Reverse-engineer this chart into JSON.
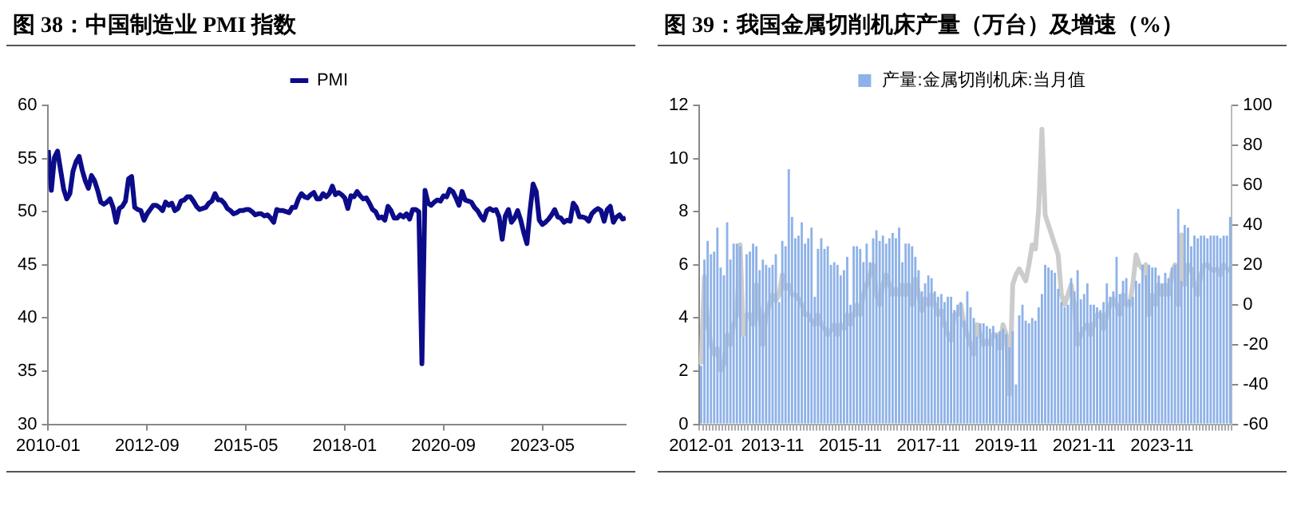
{
  "chart_data": [
    {
      "type": "line",
      "title": "图 38：中国制造业 PMI 指数",
      "legend": "top",
      "grid": false,
      "marker": "none",
      "line_style": "solid",
      "x": [
        "2010-01",
        "2010-02",
        "2010-03",
        "2010-04",
        "2010-05",
        "2010-06",
        "2010-07",
        "2010-08",
        "2010-09",
        "2010-10",
        "2010-11",
        "2010-12",
        "2011-01",
        "2011-02",
        "2011-03",
        "2011-04",
        "2011-05",
        "2011-06",
        "2011-07",
        "2011-08",
        "2011-09",
        "2011-10",
        "2011-11",
        "2011-12",
        "2012-01",
        "2012-02",
        "2012-03",
        "2012-04",
        "2012-05",
        "2012-06",
        "2012-07",
        "2012-08",
        "2012-09",
        "2012-10",
        "2012-11",
        "2012-12",
        "2013-01",
        "2013-02",
        "2013-03",
        "2013-04",
        "2013-05",
        "2013-06",
        "2013-07",
        "2013-08",
        "2013-09",
        "2013-10",
        "2013-11",
        "2013-12",
        "2014-01",
        "2014-02",
        "2014-03",
        "2014-04",
        "2014-05",
        "2014-06",
        "2014-07",
        "2014-08",
        "2014-09",
        "2014-10",
        "2014-11",
        "2014-12",
        "2015-01",
        "2015-02",
        "2015-03",
        "2015-04",
        "2015-05",
        "2015-06",
        "2015-07",
        "2015-08",
        "2015-09",
        "2015-10",
        "2015-11",
        "2015-12",
        "2016-01",
        "2016-02",
        "2016-03",
        "2016-04",
        "2016-05",
        "2016-06",
        "2016-07",
        "2016-08",
        "2016-09",
        "2016-10",
        "2016-11",
        "2016-12",
        "2017-01",
        "2017-02",
        "2017-03",
        "2017-04",
        "2017-05",
        "2017-06",
        "2017-07",
        "2017-08",
        "2017-09",
        "2017-10",
        "2017-11",
        "2017-12",
        "2018-01",
        "2018-02",
        "2018-03",
        "2018-04",
        "2018-05",
        "2018-06",
        "2018-07",
        "2018-08",
        "2018-09",
        "2018-10",
        "2018-11",
        "2018-12",
        "2019-01",
        "2019-02",
        "2019-03",
        "2019-04",
        "2019-05",
        "2019-06",
        "2019-07",
        "2019-08",
        "2019-09",
        "2019-10",
        "2019-11",
        "2019-12",
        "2020-01",
        "2020-02",
        "2020-03",
        "2020-04",
        "2020-05",
        "2020-06",
        "2020-07",
        "2020-08",
        "2020-09",
        "2020-10",
        "2020-11",
        "2020-12",
        "2021-01",
        "2021-02",
        "2021-03",
        "2021-04",
        "2021-05",
        "2021-06",
        "2021-07",
        "2021-08",
        "2021-09",
        "2021-10",
        "2021-11",
        "2021-12",
        "2022-01",
        "2022-02",
        "2022-03",
        "2022-04",
        "2022-05",
        "2022-06",
        "2022-07",
        "2022-08",
        "2022-09",
        "2022-10",
        "2022-11",
        "2022-12",
        "2023-01",
        "2023-02",
        "2023-03",
        "2023-04",
        "2023-05",
        "2023-06",
        "2023-07",
        "2023-08",
        "2023-09",
        "2023-10",
        "2023-11",
        "2023-12",
        "2024-01",
        "2024-02",
        "2024-03",
        "2024-04",
        "2024-05",
        "2024-06",
        "2024-07",
        "2024-08",
        "2024-09",
        "2024-10",
        "2024-11",
        "2024-12",
        "2025-01",
        "2025-02",
        "2025-03",
        "2025-04",
        "2025-05",
        "2025-06",
        "2025-07",
        "2025-08"
      ],
      "series": [
        {
          "name": "PMI",
          "color": "#0c0c8a",
          "values": [
            55.8,
            52.0,
            55.1,
            55.7,
            53.9,
            52.1,
            51.2,
            51.7,
            53.8,
            54.7,
            55.2,
            53.9,
            52.9,
            52.2,
            53.4,
            52.9,
            52.0,
            50.9,
            50.7,
            50.9,
            51.2,
            50.4,
            49.0,
            50.3,
            50.5,
            51.0,
            53.1,
            53.3,
            50.4,
            50.2,
            50.1,
            49.2,
            49.8,
            50.2,
            50.6,
            50.6,
            50.4,
            50.1,
            50.9,
            50.6,
            50.8,
            50.1,
            50.3,
            51.0,
            51.1,
            51.4,
            51.4,
            51.0,
            50.5,
            50.2,
            50.3,
            50.4,
            50.8,
            51.0,
            51.7,
            51.1,
            51.1,
            50.8,
            50.3,
            50.1,
            49.8,
            49.9,
            50.1,
            50.1,
            50.2,
            50.2,
            50.0,
            49.7,
            49.8,
            49.8,
            49.6,
            49.7,
            49.4,
            49.0,
            50.2,
            50.1,
            50.1,
            50.0,
            49.9,
            50.4,
            50.4,
            51.2,
            51.7,
            51.4,
            51.3,
            51.6,
            51.8,
            51.2,
            51.2,
            51.7,
            51.4,
            51.7,
            52.4,
            51.6,
            51.8,
            51.6,
            51.3,
            50.3,
            51.5,
            51.4,
            51.9,
            51.5,
            51.2,
            51.3,
            50.8,
            50.2,
            50.0,
            49.4,
            49.5,
            49.2,
            50.5,
            50.1,
            49.4,
            49.4,
            49.7,
            49.5,
            49.8,
            49.3,
            50.2,
            50.2,
            50.0,
            35.7,
            52.0,
            50.8,
            50.6,
            50.9,
            51.1,
            51.0,
            51.5,
            51.4,
            52.1,
            51.9,
            51.3,
            50.6,
            51.9,
            51.1,
            51.0,
            50.9,
            50.4,
            50.1,
            49.6,
            49.2,
            50.1,
            50.3,
            50.1,
            50.2,
            49.5,
            47.4,
            49.6,
            50.2,
            49.0,
            49.4,
            50.1,
            49.2,
            48.0,
            47.0,
            50.1,
            52.6,
            51.9,
            49.2,
            48.8,
            49.0,
            49.3,
            49.7,
            50.2,
            49.5,
            49.4,
            49.0,
            49.2,
            49.1,
            50.8,
            50.4,
            49.5,
            49.5,
            49.4,
            49.1,
            49.8,
            50.1,
            50.3,
            50.1,
            49.1,
            50.2,
            50.5,
            49.0,
            49.5,
            49.7,
            49.3,
            49.4
          ]
        }
      ],
      "xlim": [
        "2010-01",
        "2025-08"
      ],
      "xticks": [
        "2010-01",
        "2012-09",
        "2015-05",
        "2018-01",
        "2020-09",
        "2023-05"
      ],
      "ylim": [
        30,
        60
      ],
      "yticks": [
        30,
        35,
        40,
        45,
        50,
        55,
        60
      ]
    },
    {
      "type": "bar",
      "title": "图 39：我国金属切削机床产量（万台）及增速（%）",
      "legend": "top",
      "grid": false,
      "categories": [
        "2012-01",
        null,
        null,
        null,
        null,
        null,
        null,
        null,
        null,
        null,
        null,
        null,
        null,
        null,
        null,
        null,
        null,
        null,
        null,
        null,
        null,
        null,
        "2013-11",
        null,
        null,
        null,
        null,
        null,
        null,
        null,
        null,
        null,
        null,
        null,
        null,
        null,
        null,
        null,
        null,
        null,
        null,
        null,
        null,
        null,
        null,
        null,
        "2015-11",
        null,
        null,
        null,
        null,
        null,
        null,
        null,
        null,
        null,
        null,
        null,
        null,
        null,
        null,
        null,
        null,
        null,
        null,
        null,
        null,
        null,
        null,
        null,
        "2017-11",
        null,
        null,
        null,
        null,
        null,
        null,
        null,
        null,
        null,
        null,
        null,
        null,
        null,
        null,
        null,
        null,
        null,
        null,
        null,
        null,
        null,
        null,
        null,
        "2019-11",
        null,
        null,
        null,
        null,
        null,
        null,
        null,
        null,
        null,
        null,
        null,
        null,
        null,
        null,
        null,
        null,
        null,
        null,
        null,
        null,
        null,
        null,
        null,
        "2021-11",
        null,
        null,
        null,
        null,
        null,
        null,
        null,
        null,
        null,
        null,
        null,
        null,
        null,
        null,
        null,
        null,
        null,
        null,
        null,
        null,
        null,
        null,
        null,
        "2023-11",
        null,
        null,
        null,
        null,
        null,
        null,
        null,
        null,
        null,
        null,
        null,
        null,
        null,
        null,
        null,
        null,
        null,
        null,
        null,
        null,
        null
      ],
      "series": [
        {
          "name": "产量:金属切削机床:当月值",
          "type": "bar",
          "color": "#8eb2e8",
          "values": [
            2.2,
            6.2,
            6.9,
            6.4,
            6.5,
            7.4,
            5.9,
            5.6,
            7.6,
            6.2,
            6.8,
            6.8,
            6.7,
            3.3,
            6.4,
            6.5,
            6.8,
            6.7,
            5.8,
            6.2,
            6.0,
            5.9,
            6.0,
            6.4,
            4.6,
            6.9,
            6.7,
            9.6,
            7.8,
            7.0,
            7.1,
            7.6,
            6.8,
            7.0,
            7.4,
            4.8,
            6.6,
            7.0,
            6.6,
            6.7,
            6.0,
            6.1,
            6.0,
            5.6,
            5.8,
            6.3,
            4.5,
            6.7,
            6.7,
            6.6,
            6.1,
            6.8,
            6.1,
            7.0,
            7.3,
            6.9,
            7.1,
            6.8,
            7.0,
            7.2,
            7.0,
            7.4,
            6.1,
            6.8,
            6.8,
            6.7,
            6.3,
            5.8,
            5.0,
            5.3,
            5.6,
            5.5,
            5.0,
            4.8,
            4.9,
            4.6,
            4.8,
            4.8,
            4.3,
            4.5,
            4.6,
            3.9,
            5.0,
            4.4,
            4.0,
            3.3,
            3.8,
            3.8,
            3.7,
            3.6,
            3.7,
            3.4,
            3.5,
            3.6,
            3.4,
            2.9,
            3.5,
            1.5,
            4.1,
            4.5,
            3.9,
            3.8,
            4.0,
            3.9,
            4.4,
            4.9,
            6.0,
            5.9,
            5.8,
            5.7,
            5.1,
            4.6,
            4.4,
            4.5,
            5.5,
            5.0,
            5.8,
            4.7,
            4.9,
            5.3,
            4.5,
            4.5,
            4.4,
            4.3,
            4.6,
            5.3,
            4.8,
            5.0,
            6.3,
            4.9,
            5.4,
            5.5,
            4.7,
            4.8,
            5.4,
            5.3,
            6.0,
            5.6,
            6.0,
            5.9,
            5.9,
            5.6,
            5.3,
            5.7,
            5.5,
            5.9,
            6.0,
            8.1,
            5.4,
            7.5,
            7.4,
            6.7,
            7.1,
            7.0,
            7.1,
            7.1,
            7.0,
            7.1,
            7.1,
            7.1,
            7.0,
            7.1,
            7.1,
            7.8
          ]
        },
        {
          "type": "line",
          "axis": "y2",
          "color": "#cccccc",
          "values": [
            -30,
            14,
            -10,
            -20,
            -25,
            -22,
            -33,
            -30,
            -15,
            -20,
            -10,
            -5,
            30,
            -15,
            -5,
            -5,
            -10,
            10,
            -5,
            -20,
            -5,
            0,
            5,
            2,
            5,
            15,
            8,
            10,
            5,
            5,
            3,
            0,
            -5,
            -5,
            -8,
            -10,
            -5,
            -10,
            -12,
            -15,
            -13,
            -10,
            -15,
            -10,
            -12,
            -5,
            -10,
            -5,
            0,
            -5,
            5,
            10,
            15,
            20,
            5,
            0,
            10,
            15,
            10,
            5,
            8,
            5,
            10,
            5,
            10,
            0,
            13,
            5,
            -3,
            3,
            0,
            5,
            0,
            -5,
            -3,
            -10,
            -15,
            -18,
            -5,
            -5,
            0,
            -10,
            -15,
            -20,
            -25,
            -10,
            -15,
            -20,
            -18,
            -20,
            -15,
            -15,
            -22,
            -10,
            -15,
            -45,
            10,
            15,
            18,
            15,
            12,
            20,
            30,
            28,
            48,
            88,
            45,
            40,
            35,
            30,
            25,
            5,
            0,
            5,
            10,
            0,
            -20,
            -15,
            -12,
            -10,
            -15,
            -10,
            -5,
            -5,
            -12,
            -5,
            0,
            3,
            0,
            -5,
            5,
            0,
            0,
            10,
            25,
            20,
            18,
            20,
            -5,
            5,
            0,
            10,
            5,
            10,
            5,
            15,
            20,
            0,
            35,
            10,
            20,
            18,
            10,
            5,
            15,
            20,
            20,
            18,
            17,
            18,
            15,
            20,
            18,
            17
          ]
        }
      ],
      "ylim": [
        0,
        12
      ],
      "yticks": [
        0,
        2,
        4,
        6,
        8,
        10,
        12
      ],
      "y2lim": [
        -60,
        100
      ],
      "y2ticks": [
        -60,
        -40,
        -20,
        0,
        20,
        40,
        60,
        80,
        100
      ]
    }
  ]
}
